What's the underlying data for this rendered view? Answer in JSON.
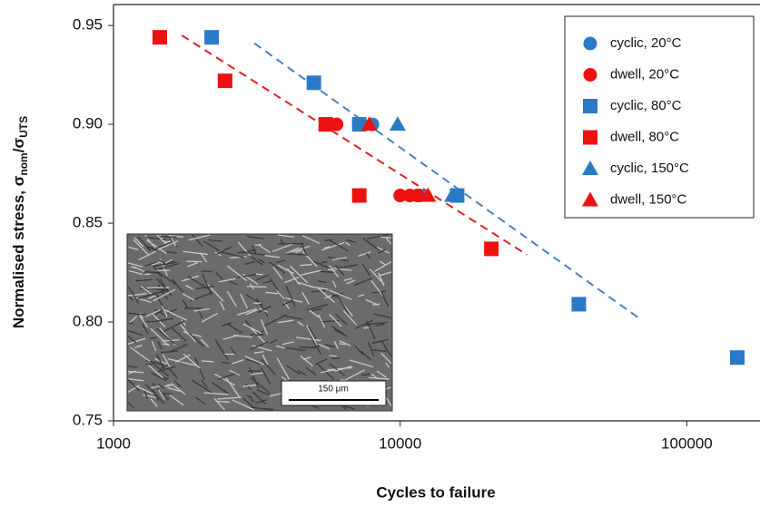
{
  "chart_data": {
    "type": "scatter",
    "x_log": true,
    "x_label": "Cycles to failure",
    "y_label_parts": [
      {
        "text": "Normalised stress, σ"
      },
      {
        "text": "nom",
        "sub": true
      },
      {
        "text": "/σ"
      },
      {
        "text": "UTS",
        "sub": true
      }
    ],
    "xlim": [
      1000,
      180000
    ],
    "ylim": [
      0.75,
      0.9606
    ],
    "xticks": [
      1000,
      10000,
      100000
    ],
    "yticks": [
      0.75,
      {
        "value": 0.8,
        "label": "0.80"
      },
      0.85,
      {
        "value": 0.9,
        "label": "0.90"
      },
      0.95
    ],
    "legend": "upper right",
    "inset_scale_label": "150 μm",
    "series": [
      {
        "name": "cyclic, 20°C",
        "color": "#2a7ac7",
        "marker": "circle",
        "x": [
          8000,
          11700
        ],
        "values": [
          0.9,
          0.864
        ]
      },
      {
        "name": "dwell, 20°C",
        "color": "#ee1111",
        "marker": "circle",
        "x": [
          5600,
          6000,
          10000,
          10800,
          11500
        ],
        "values": [
          0.9,
          0.9,
          0.864,
          0.864,
          0.864
        ]
      },
      {
        "name": "cyclic, 80°C",
        "color": "#2a7ac7",
        "marker": "square",
        "x": [
          2200,
          5000,
          7200,
          15800,
          42000,
          150000
        ],
        "values": [
          0.944,
          0.921,
          0.9,
          0.864,
          0.809,
          0.782
        ]
      },
      {
        "name": "dwell, 80°C",
        "color": "#ee1111",
        "marker": "square",
        "x": [
          1450,
          2450,
          5500,
          7200,
          20800
        ],
        "values": [
          0.944,
          0.922,
          0.9,
          0.864,
          0.837
        ]
      },
      {
        "name": "cyclic, 150°C",
        "color": "#2a7ac7",
        "marker": "triangle",
        "x": [
          9800,
          15200
        ],
        "values": [
          0.9,
          0.864
        ]
      },
      {
        "name": "dwell, 150°C",
        "color": "#ee1111",
        "marker": "triangle",
        "x": [
          7800,
          12500
        ],
        "values": [
          0.9,
          0.864
        ]
      }
    ],
    "trend_lines": [
      {
        "color": "#4a7fc0",
        "x": [
          3100,
          68000
        ],
        "values": [
          0.941,
          0.802
        ]
      },
      {
        "color": "#e02020",
        "x": [
          1730,
          27700
        ],
        "values": [
          0.945,
          0.834
        ]
      }
    ]
  }
}
